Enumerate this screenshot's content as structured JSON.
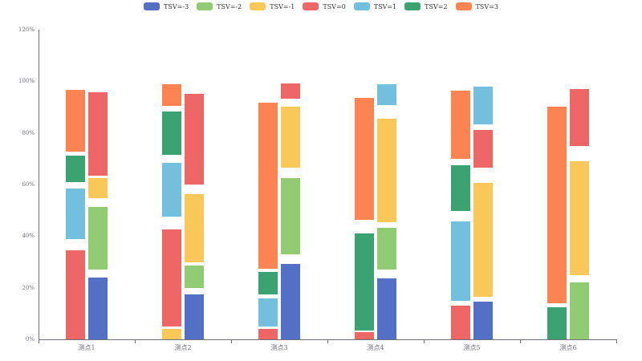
{
  "chart_data": {
    "type": "bar",
    "subtype": "floating-stacked-grouped",
    "title": "",
    "xlabel": "",
    "ylabel": "",
    "ylim": [
      0,
      120
    ],
    "yticks": [
      "0%",
      "20%",
      "40%",
      "60%",
      "80%",
      "100%",
      "120%"
    ],
    "categories": [
      "测点1",
      "测点2",
      "测点3",
      "测点4",
      "测点5",
      "测点6"
    ],
    "legend": [
      {
        "name": "TSV=-3",
        "color": "#5470c6"
      },
      {
        "name": "TSV=-2",
        "color": "#91cc75"
      },
      {
        "name": "TSV=-1",
        "color": "#fac858"
      },
      {
        "name": "TSV=0",
        "color": "#ee6666"
      },
      {
        "name": "TSV=1",
        "color": "#73c0de"
      },
      {
        "name": "TSV=2",
        "color": "#3ba272"
      },
      {
        "name": "TSV=3",
        "color": "#fc8452"
      }
    ],
    "groups": [
      {
        "category": "测点1",
        "left": [
          {
            "series": "TSV=0",
            "from": 0,
            "to": 34.5
          },
          {
            "series": "TSV=1",
            "from": 38.9,
            "to": 58.4
          },
          {
            "series": "TSV=2",
            "from": 60.9,
            "to": 71.2
          },
          {
            "series": "TSV=3",
            "from": 72.7,
            "to": 96.7
          }
        ],
        "right": [
          {
            "series": "TSV=-3",
            "from": 0,
            "to": 23.9
          },
          {
            "series": "TSV=-2",
            "from": 27.0,
            "to": 51.3
          },
          {
            "series": "TSV=-1",
            "from": 54.7,
            "to": 62.5
          },
          {
            "series": "TSV=0",
            "from": 63.4,
            "to": 95.8
          }
        ]
      },
      {
        "category": "测点2",
        "left": [
          {
            "series": "TSV=-1",
            "from": 0,
            "to": 4.0
          },
          {
            "series": "TSV=0",
            "from": 5.0,
            "to": 42.6
          },
          {
            "series": "TSV=1",
            "from": 47.6,
            "to": 68.4
          },
          {
            "series": "TSV=2",
            "from": 71.5,
            "to": 88.3
          },
          {
            "series": "TSV=3",
            "from": 90.5,
            "to": 98.9
          }
        ],
        "right": [
          {
            "series": "TSV=-3",
            "from": 0,
            "to": 17.4
          },
          {
            "series": "TSV=-2",
            "from": 19.9,
            "to": 28.6
          },
          {
            "series": "TSV=-1",
            "from": 29.8,
            "to": 56.3
          },
          {
            "series": "TSV=0",
            "from": 60.0,
            "to": 95.1
          }
        ]
      },
      {
        "category": "测点3",
        "left": [
          {
            "series": "TSV=0",
            "from": 0,
            "to": 4.0
          },
          {
            "series": "TSV=1",
            "from": 5.0,
            "to": 15.9
          },
          {
            "series": "TSV=2",
            "from": 17.4,
            "to": 26.1
          },
          {
            "series": "TSV=3",
            "from": 27.4,
            "to": 91.7
          }
        ],
        "right": [
          {
            "series": "TSV=-3",
            "from": 0,
            "to": 29.2
          },
          {
            "series": "TSV=-2",
            "from": 33.0,
            "to": 62.5
          },
          {
            "series": "TSV=-1",
            "from": 66.5,
            "to": 90.2
          },
          {
            "series": "TSV=0",
            "from": 93.3,
            "to": 99.2
          }
        ]
      },
      {
        "category": "测点4",
        "left": [
          {
            "series": "TSV=0",
            "from": 0,
            "to": 2.8
          },
          {
            "series": "TSV=2",
            "from": 3.4,
            "to": 41.0
          },
          {
            "series": "TSV=3",
            "from": 46.3,
            "to": 93.6
          }
        ],
        "right": [
          {
            "series": "TSV=-3",
            "from": 0,
            "to": 23.6
          },
          {
            "series": "TSV=-2",
            "from": 27.0,
            "to": 43.2
          },
          {
            "series": "TSV=-1",
            "from": 45.4,
            "to": 85.5
          },
          {
            "series": "TSV=1",
            "from": 90.8,
            "to": 98.9
          }
        ]
      },
      {
        "category": "测点5",
        "left": [
          {
            "series": "TSV=0",
            "from": 0,
            "to": 13.1
          },
          {
            "series": "TSV=1",
            "from": 14.9,
            "to": 45.7
          },
          {
            "series": "TSV=2",
            "from": 49.7,
            "to": 67.5
          },
          {
            "series": "TSV=3",
            "from": 69.9,
            "to": 96.4
          }
        ],
        "right": [
          {
            "series": "TSV=-3",
            "from": 0,
            "to": 14.6
          },
          {
            "series": "TSV=-1",
            "from": 16.5,
            "to": 60.6
          },
          {
            "series": "TSV=0",
            "from": 66.5,
            "to": 81.1
          },
          {
            "series": "TSV=1",
            "from": 83.3,
            "to": 97.9
          }
        ]
      },
      {
        "category": "测点6",
        "left": [
          {
            "series": "TSV=2",
            "from": 0,
            "to": 12.4
          },
          {
            "series": "TSV=3",
            "from": 14.0,
            "to": 90.2
          }
        ],
        "right": [
          {
            "series": "TSV=-2",
            "from": 0,
            "to": 22.1
          },
          {
            "series": "TSV=-1",
            "from": 24.9,
            "to": 69.0
          },
          {
            "series": "TSV=0",
            "from": 74.9,
            "to": 97.0
          }
        ]
      }
    ]
  }
}
